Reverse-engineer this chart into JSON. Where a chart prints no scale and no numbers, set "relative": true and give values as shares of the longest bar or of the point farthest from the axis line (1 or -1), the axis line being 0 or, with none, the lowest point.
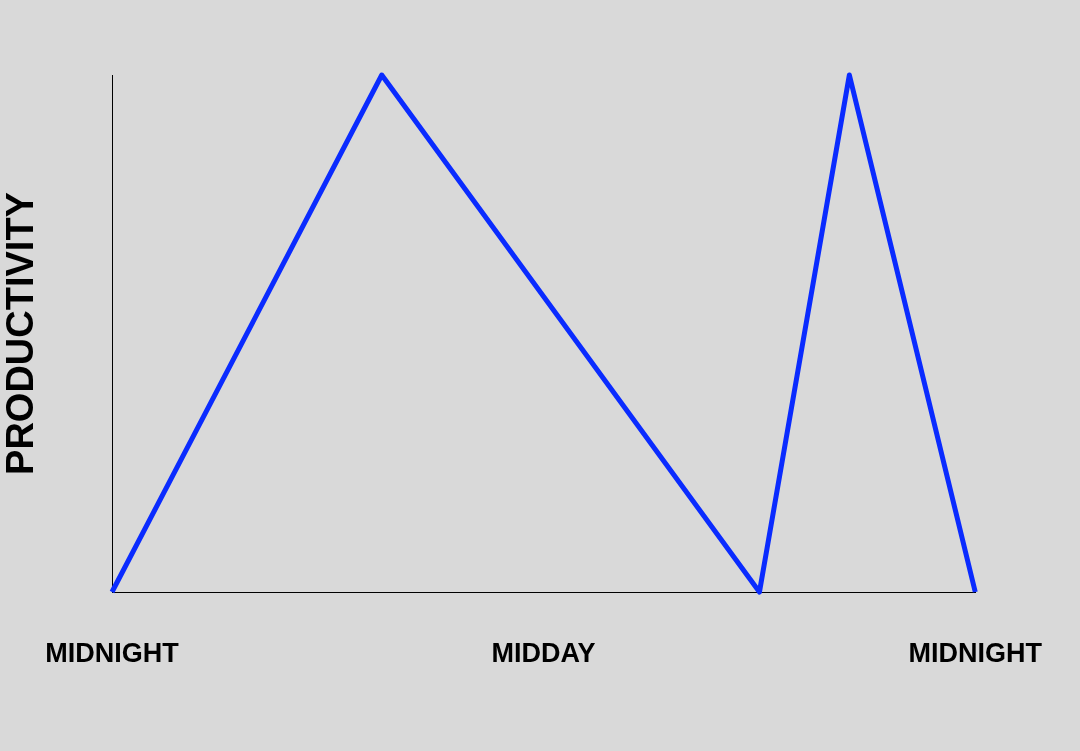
{
  "chart_data": {
    "type": "line",
    "ylabel": "PRODUCTIVITY",
    "relative": true,
    "marker": "none",
    "categories": [
      "MIDNIGHT",
      null,
      null,
      null,
      null,
      null,
      null,
      null,
      null,
      null,
      null,
      null,
      null,
      null,
      null,
      null,
      null,
      null,
      null,
      null,
      null,
      null,
      null,
      null,
      "MIDDAY",
      null,
      null,
      null,
      null,
      null,
      null,
      null,
      null,
      null,
      null,
      null,
      null,
      null,
      null,
      null,
      null,
      null,
      null,
      null,
      null,
      null,
      null,
      null,
      "MIDNIGHT"
    ],
    "series": [
      {
        "color": "#0a2bff",
        "values": [
          0,
          null,
          null,
          null,
          null,
          null,
          null,
          null,
          null,
          null,
          null,
          null,
          null,
          null,
          null,
          1,
          null,
          null,
          null,
          null,
          null,
          null,
          null,
          null,
          null,
          null,
          null,
          null,
          null,
          null,
          null,
          null,
          null,
          null,
          null,
          null,
          0,
          null,
          null,
          null,
          null,
          1,
          null,
          null,
          null,
          null,
          null,
          null,
          0
        ]
      }
    ]
  }
}
